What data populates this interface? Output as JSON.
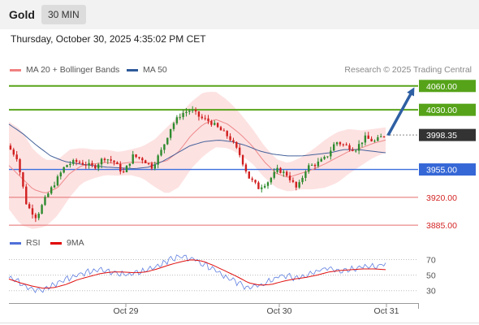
{
  "header": {
    "symbol": "Gold",
    "timeframe": "30 MIN"
  },
  "datetime": "Thursday, October 30, 2025 4:35:02 PM CET",
  "legend": {
    "price": [
      {
        "label": "MA 20 + Bollinger Bands",
        "color": "#f08080"
      },
      {
        "label": "MA 50",
        "color": "#2e5a9a"
      }
    ],
    "rsi": [
      {
        "label": "RSI",
        "color": "#4f6fd8"
      },
      {
        "label": "9MA",
        "color": "#e00000"
      }
    ]
  },
  "copyright": "Research © 2025 Trading Central",
  "colors": {
    "up": "#2e8b2e",
    "down": "#d11f1f",
    "band": "#fde2e2",
    "support": "#e56b6b",
    "resistance": "#58a41a",
    "pivot": "#3b6fe0",
    "arrow": "#2e5fa3"
  },
  "levels": [
    {
      "value": "4060.00",
      "price": 4060,
      "kind": "resistance"
    },
    {
      "value": "4030.00",
      "price": 4030,
      "kind": "resistance"
    },
    {
      "value": "3998.35",
      "price": 3998.35,
      "kind": "current"
    },
    {
      "value": "3955.00",
      "price": 3955,
      "kind": "pivot"
    },
    {
      "value": "3920.00",
      "price": 3920,
      "kind": "support"
    },
    {
      "value": "3885.00",
      "price": 3885,
      "kind": "support"
    }
  ],
  "x_labels": [
    "Oct 29",
    "Oct 30",
    "Oct 31"
  ],
  "rsi_ticks": [
    "70",
    "50",
    "30"
  ],
  "chart_data": {
    "type": "candlestick",
    "price_keypoints": [
      3985,
      3970,
      3910,
      3895,
      3920,
      3940,
      3960,
      3965,
      3962,
      3958,
      3970,
      3965,
      3950,
      3972,
      3968,
      3958,
      3980,
      4010,
      4025,
      4030,
      4020,
      4015,
      4005,
      3995,
      3975,
      3945,
      3932,
      3940,
      3955,
      3948,
      3930,
      3958,
      3962,
      3970,
      3990,
      3985,
      3980,
      3995,
      3990,
      3998
    ],
    "ma20_keypoints": [
      3960,
      3945,
      3930,
      3925,
      3932,
      3950,
      3960,
      3962,
      3964,
      3962,
      3964,
      3964,
      3963,
      3966,
      3978,
      3998,
      4012,
      4018,
      4012,
      4000,
      3985,
      3965,
      3950,
      3945,
      3950,
      3955,
      3962,
      3970,
      3978,
      3982,
      3988,
      3992
    ],
    "ma50_keypoints": [
      4012,
      4000,
      3985,
      3972,
      3965,
      3962,
      3960,
      3958,
      3957,
      3956,
      3958,
      3965,
      3975,
      3985,
      3990,
      3992,
      3990,
      3985,
      3978,
      3974,
      3972,
      3972,
      3974,
      3976,
      3980,
      3980,
      3978,
      3976
    ],
    "band_half_width_keypoints": [
      55,
      60,
      50,
      42,
      35,
      30,
      22,
      18,
      16,
      15,
      16,
      20,
      30,
      42,
      45,
      42,
      40,
      35,
      30,
      26,
      22,
      20,
      18,
      18,
      20,
      25,
      30,
      32,
      28,
      22,
      18,
      16
    ],
    "rsi_keypoints": [
      48,
      40,
      33,
      30,
      38,
      45,
      50,
      55,
      58,
      54,
      50,
      52,
      56,
      62,
      70,
      74,
      72,
      65,
      58,
      48,
      40,
      34,
      36,
      44,
      50,
      46,
      48,
      55,
      60,
      56,
      58,
      62,
      60,
      65
    ],
    "rsi_ma_keypoints": [
      45,
      40,
      36,
      33,
      34,
      38,
      44,
      48,
      52,
      54,
      54,
      53,
      54,
      58,
      63,
      67,
      70,
      68,
      62,
      55,
      48,
      40,
      37,
      38,
      42,
      45,
      47,
      50,
      54,
      56,
      57,
      58,
      58,
      57
    ],
    "candle_count": 120,
    "price_ylim": [
      3880,
      4070
    ],
    "rsi_ylim": [
      15,
      80
    ],
    "projection": {
      "from_price": 3998,
      "to_price": 4060
    }
  }
}
